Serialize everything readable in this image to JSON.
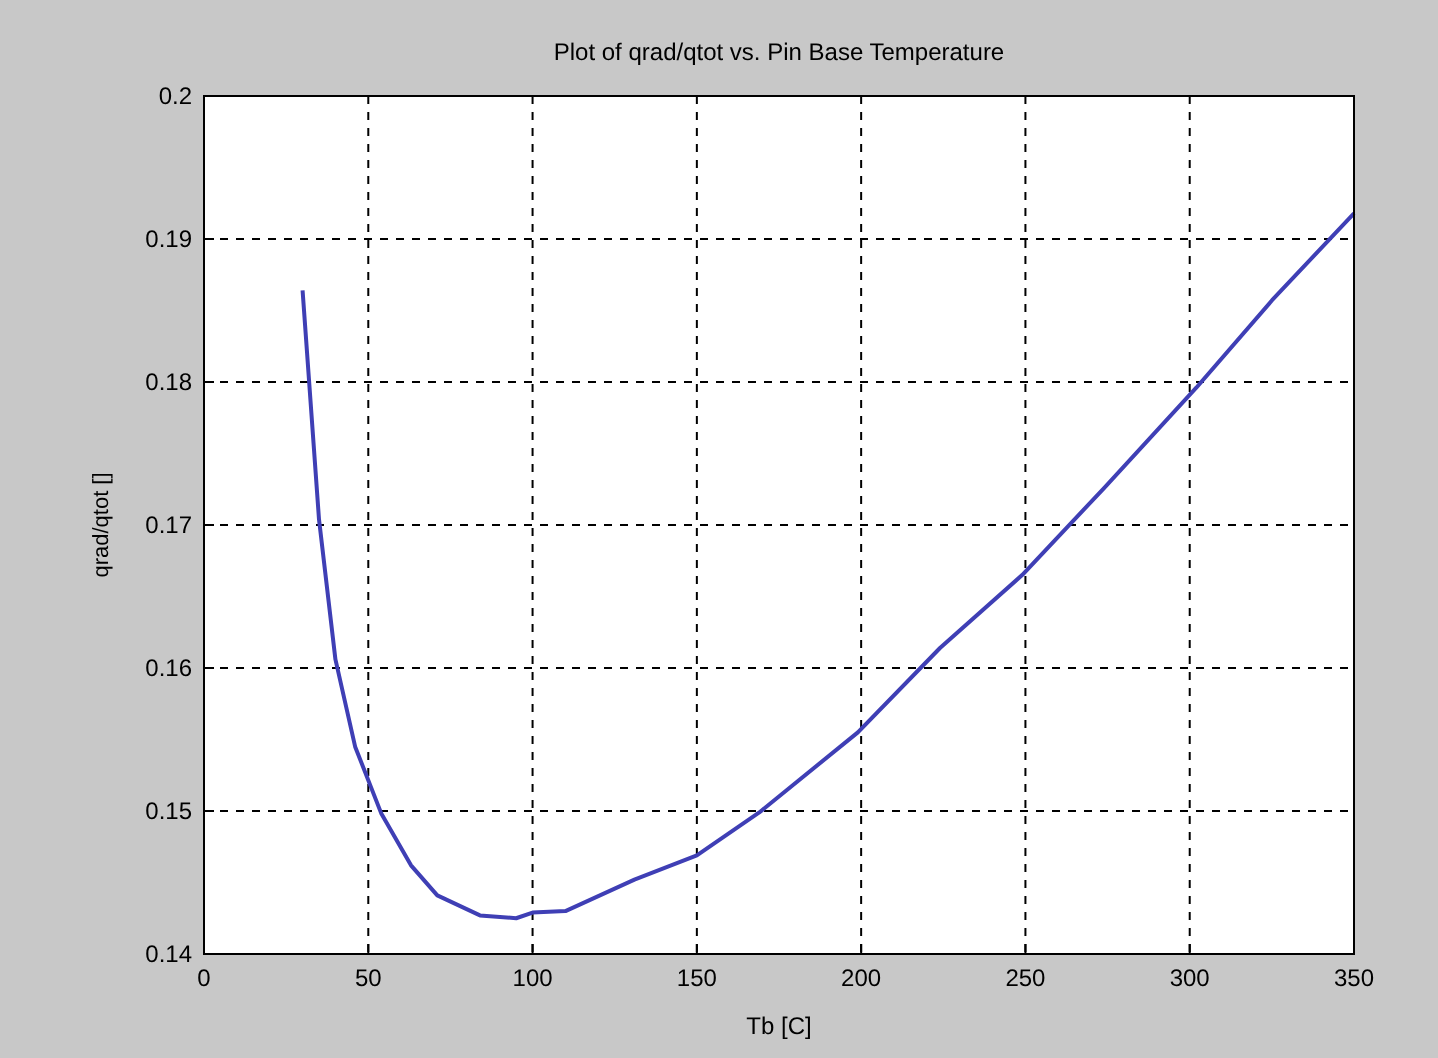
{
  "chart_data": {
    "type": "line",
    "title": "Plot of qrad/qtot vs. Pin Base Temperature",
    "xlabel": "Tb [C]",
    "ylabel": "qrad/qtot []",
    "series": [
      {
        "color": "#3f3fb5",
        "x": [
          30,
          35,
          40,
          46,
          54,
          63,
          71,
          84,
          95,
          100,
          110,
          131,
          150,
          169,
          199,
          224,
          249,
          274,
          302,
          325,
          350
        ],
        "values": [
          0.1864,
          0.1704,
          0.1606,
          0.1545,
          0.1498,
          0.1462,
          0.1441,
          0.1427,
          0.1425,
          0.1429,
          0.143,
          0.1452,
          0.1469,
          0.1499,
          0.1555,
          0.1614,
          0.1665,
          0.1726,
          0.1796,
          0.1857,
          0.1918
        ]
      }
    ],
    "xlim": [
      0,
      350
    ],
    "xticks": [
      0,
      50,
      100,
      150,
      200,
      250,
      300,
      350
    ],
    "ylim": [
      0.14,
      0.2
    ],
    "yticks": [
      0.14,
      0.15,
      0.16,
      0.17,
      0.18,
      0.19,
      0.2
    ],
    "grid": true,
    "marker": "none",
    "line_style": "solid"
  }
}
